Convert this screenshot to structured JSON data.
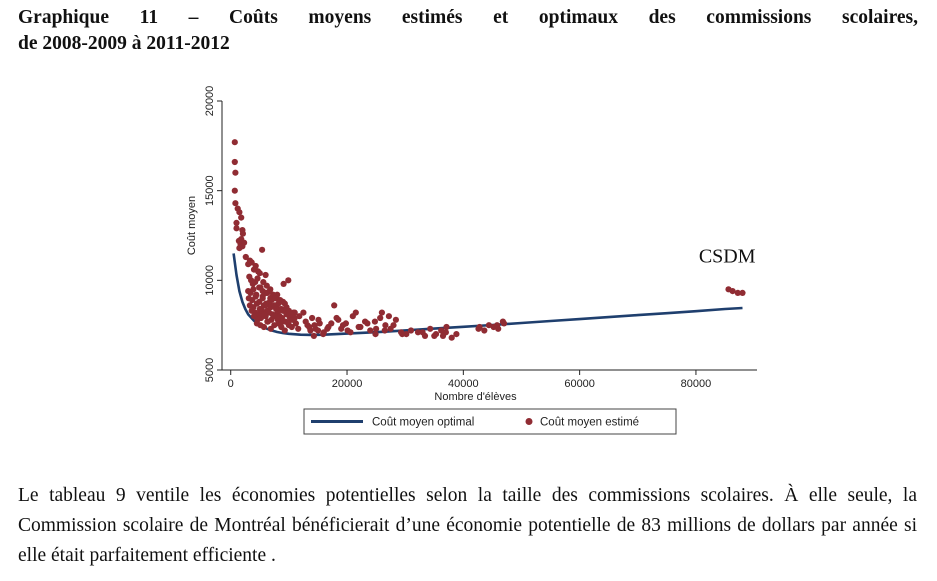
{
  "heading": {
    "line1": "Graphique 11 – Coûts moyens estimés et optimaux des commissions scolaires,",
    "line2": "de 2008-2009 à 2011-2012"
  },
  "paragraph": "Le tableau 9 ventile les économies potentielles selon la taille des commissions scolaires. À elle seule, la Commission scolaire de Montréal bénéficierait d’une économie potentielle de 83 millions de dollars par année si elle était parfaitement efficiente .",
  "chart_data": {
    "type": "scatter",
    "title": "",
    "xlabel": "Nombre d'élèves",
    "ylabel": "Coût moyen",
    "xlim": [
      -1500,
      90500
    ],
    "ylim": [
      5000,
      20000
    ],
    "x_ticks": [
      0,
      20000,
      40000,
      60000,
      80000
    ],
    "y_ticks": [
      5000,
      10000,
      15000,
      20000
    ],
    "grid": false,
    "legend_position": "bottom",
    "annotation": {
      "text": "CSDM",
      "x": 80500,
      "y": 11000
    },
    "colors": {
      "optimal": "#1f3f6e",
      "estimated": "#902c33"
    },
    "series": [
      {
        "name": "Coût moyen optimal",
        "kind": "line",
        "x": [
          500,
          1000,
          1500,
          2000,
          2500,
          3000,
          4000,
          5000,
          6000,
          7000,
          8000,
          9000,
          10000,
          12000,
          14000,
          16000,
          20000,
          25000,
          30000,
          35000,
          40000,
          45000,
          50000,
          55000,
          60000,
          65000,
          70000,
          75000,
          80000,
          85000,
          88000
        ],
        "y": [
          11500,
          10300,
          9400,
          8800,
          8400,
          8100,
          7750,
          7500,
          7330,
          7210,
          7120,
          7060,
          7020,
          6970,
          6960,
          6970,
          7030,
          7110,
          7210,
          7310,
          7410,
          7510,
          7620,
          7730,
          7840,
          7950,
          8060,
          8170,
          8280,
          8400,
          8460
        ]
      },
      {
        "name": "Coût moyen estimé",
        "kind": "scatter",
        "x": [
          700,
          700,
          800,
          700,
          800,
          1000,
          1200,
          1500,
          1800,
          2000,
          1000,
          1400,
          1700,
          2100,
          2300,
          1500,
          2000,
          1800,
          2600,
          3000,
          3300,
          3600,
          4000,
          4300,
          4700,
          5000,
          5400,
          6000,
          3200,
          3500,
          3800,
          4200,
          4600,
          5100,
          5600,
          6200,
          6800,
          3000,
          3400,
          3900,
          4400,
          4900,
          5500,
          6100,
          6700,
          7300,
          7900,
          3100,
          3700,
          4300,
          4900,
          5500,
          6100,
          6700,
          7300,
          7900,
          8500,
          9100,
          3300,
          3900,
          4500,
          5100,
          5700,
          6300,
          6900,
          7500,
          8100,
          8700,
          9300,
          9900,
          3600,
          4200,
          4800,
          5400,
          6000,
          6600,
          7200,
          7800,
          8400,
          9000,
          9600,
          10200,
          10800,
          4000,
          4600,
          5200,
          5800,
          6400,
          7000,
          7600,
          8200,
          8800,
          9400,
          10000,
          10600,
          11200,
          4500,
          5100,
          5700,
          6300,
          6900,
          7500,
          8100,
          8700,
          9300,
          9900,
          10500,
          11000,
          11600,
          5000,
          6000,
          7000,
          8000,
          9000,
          10000,
          11000,
          5500,
          6800,
          8200,
          9600,
          7200,
          8900,
          10400,
          6300,
          7600,
          11800,
          12500,
          13200,
          14000,
          14600,
          15300,
          16000,
          16800,
          12900,
          13700,
          14400,
          15100,
          15900,
          16600,
          17300,
          13500,
          14300,
          15000,
          17800,
          18500,
          19300,
          20100,
          21000,
          18200,
          19000,
          19800,
          20600,
          21500,
          22300,
          23100,
          24000,
          24900,
          25700,
          26600,
          27500,
          28400,
          29300,
          30200,
          22000,
          23500,
          25000,
          26500,
          28000,
          29500,
          31000,
          32200,
          33400,
          34300,
          35300,
          36200,
          37100,
          38000,
          33000,
          35000,
          37000,
          38800,
          36500,
          26000,
          27200,
          24800,
          42600,
          43600,
          44400,
          45200,
          46000,
          47000,
          45800,
          46800,
          42800,
          85600,
          86300,
          87200,
          88000
        ],
        "y": [
          17700,
          16600,
          16000,
          15000,
          14300,
          13200,
          14000,
          13800,
          13500,
          12800,
          12900,
          12200,
          12000,
          12600,
          12100,
          11800,
          11900,
          12300,
          11300,
          10900,
          11100,
          11000,
          10600,
          10800,
          10500,
          10400,
          11700,
          10300,
          10200,
          10000,
          9800,
          9900,
          10100,
          9600,
          9900,
          9700,
          9500,
          9400,
          9300,
          9500,
          9200,
          9600,
          9100,
          9300,
          9400,
          9200,
          9000,
          9000,
          8900,
          9100,
          8800,
          9000,
          8700,
          8800,
          9000,
          8600,
          8900,
          9800,
          8600,
          8500,
          8700,
          8400,
          8600,
          8300,
          8500,
          8600,
          8200,
          8400,
          8700,
          10000,
          8300,
          8200,
          8100,
          8300,
          8000,
          8200,
          8100,
          8400,
          8000,
          8300,
          8100,
          7900,
          8200,
          8000,
          7800,
          7900,
          8100,
          7700,
          7800,
          8000,
          7600,
          7900,
          7700,
          7500,
          7800,
          7600,
          7600,
          7500,
          7400,
          7700,
          7300,
          7500,
          7800,
          7400,
          7200,
          7600,
          7400,
          8200,
          7300,
          8400,
          8600,
          8900,
          9200,
          8800,
          8300,
          7900,
          9400,
          9000,
          8700,
          8500,
          9100,
          7700,
          8100,
          9300,
          9000,
          8000,
          8200,
          7500,
          7900,
          7300,
          7600,
          7100,
          7400,
          7700,
          7200,
          7500,
          7800,
          7000,
          7300,
          7600,
          7400,
          6900,
          7200,
          8600,
          7800,
          7500,
          7200,
          8000,
          7900,
          7300,
          7600,
          7100,
          8200,
          7400,
          7700,
          7200,
          7000,
          7900,
          7500,
          7300,
          7800,
          7100,
          7000,
          7400,
          7600,
          7300,
          7200,
          7500,
          7000,
          7200,
          7100,
          6900,
          7300,
          7000,
          7200,
          7400,
          6800,
          7100,
          6900,
          7100,
          7000,
          6900,
          8200,
          8000,
          7700,
          7300,
          7200,
          7500,
          7400,
          7300,
          7600,
          7500,
          7700,
          7400,
          9500,
          9400,
          9300,
          9300
        ]
      }
    ]
  }
}
